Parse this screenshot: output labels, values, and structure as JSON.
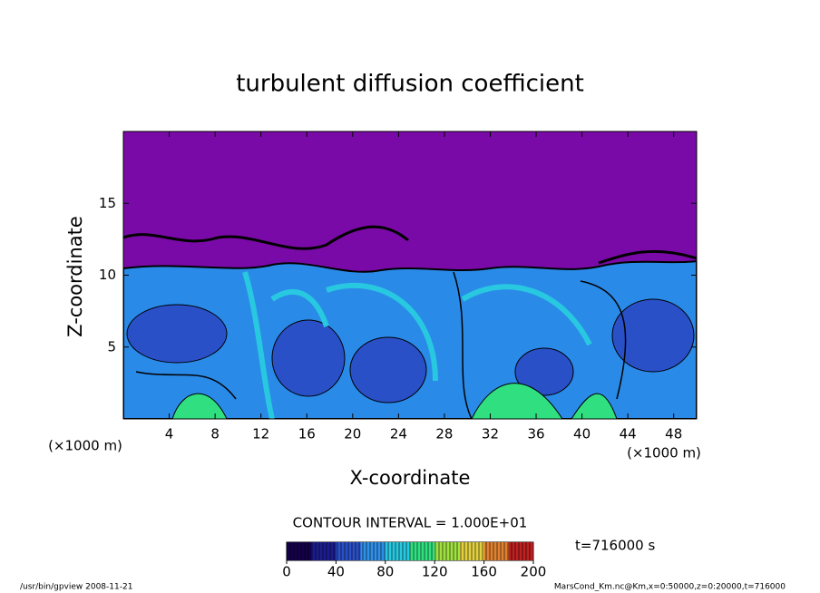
{
  "chart_data": {
    "type": "contour",
    "title": "turbulent diffusion coefficient",
    "x_label": "X-coordinate",
    "y_label": "Z-coordinate",
    "x_unit": "(×1000 m)",
    "xlim": [
      0,
      50
    ],
    "xticks": [
      4,
      8,
      12,
      16,
      20,
      24,
      28,
      32,
      36,
      40,
      44,
      48
    ],
    "ylim": [
      0,
      20
    ],
    "yticks": [
      5,
      10,
      15
    ],
    "colorbar": {
      "label": "CONTOUR INTERVAL = 1.000E+01",
      "lim": [
        0,
        200
      ],
      "ticks": [
        0,
        40,
        80,
        120,
        160,
        200
      ],
      "colors": [
        "#14004a",
        "#1c1c90",
        "#2a50c8",
        "#2f90e8",
        "#28c8e0",
        "#30e080",
        "#a0e040",
        "#e0d040",
        "#e08030",
        "#c02020"
      ]
    },
    "time_label": "t=716000 s",
    "footer_left": "/usr/bin/gpview   2008-11-21",
    "footer_right": "MarsCond_Km.nc@Km,x=0:50000,z=0:20000,t=716000"
  }
}
